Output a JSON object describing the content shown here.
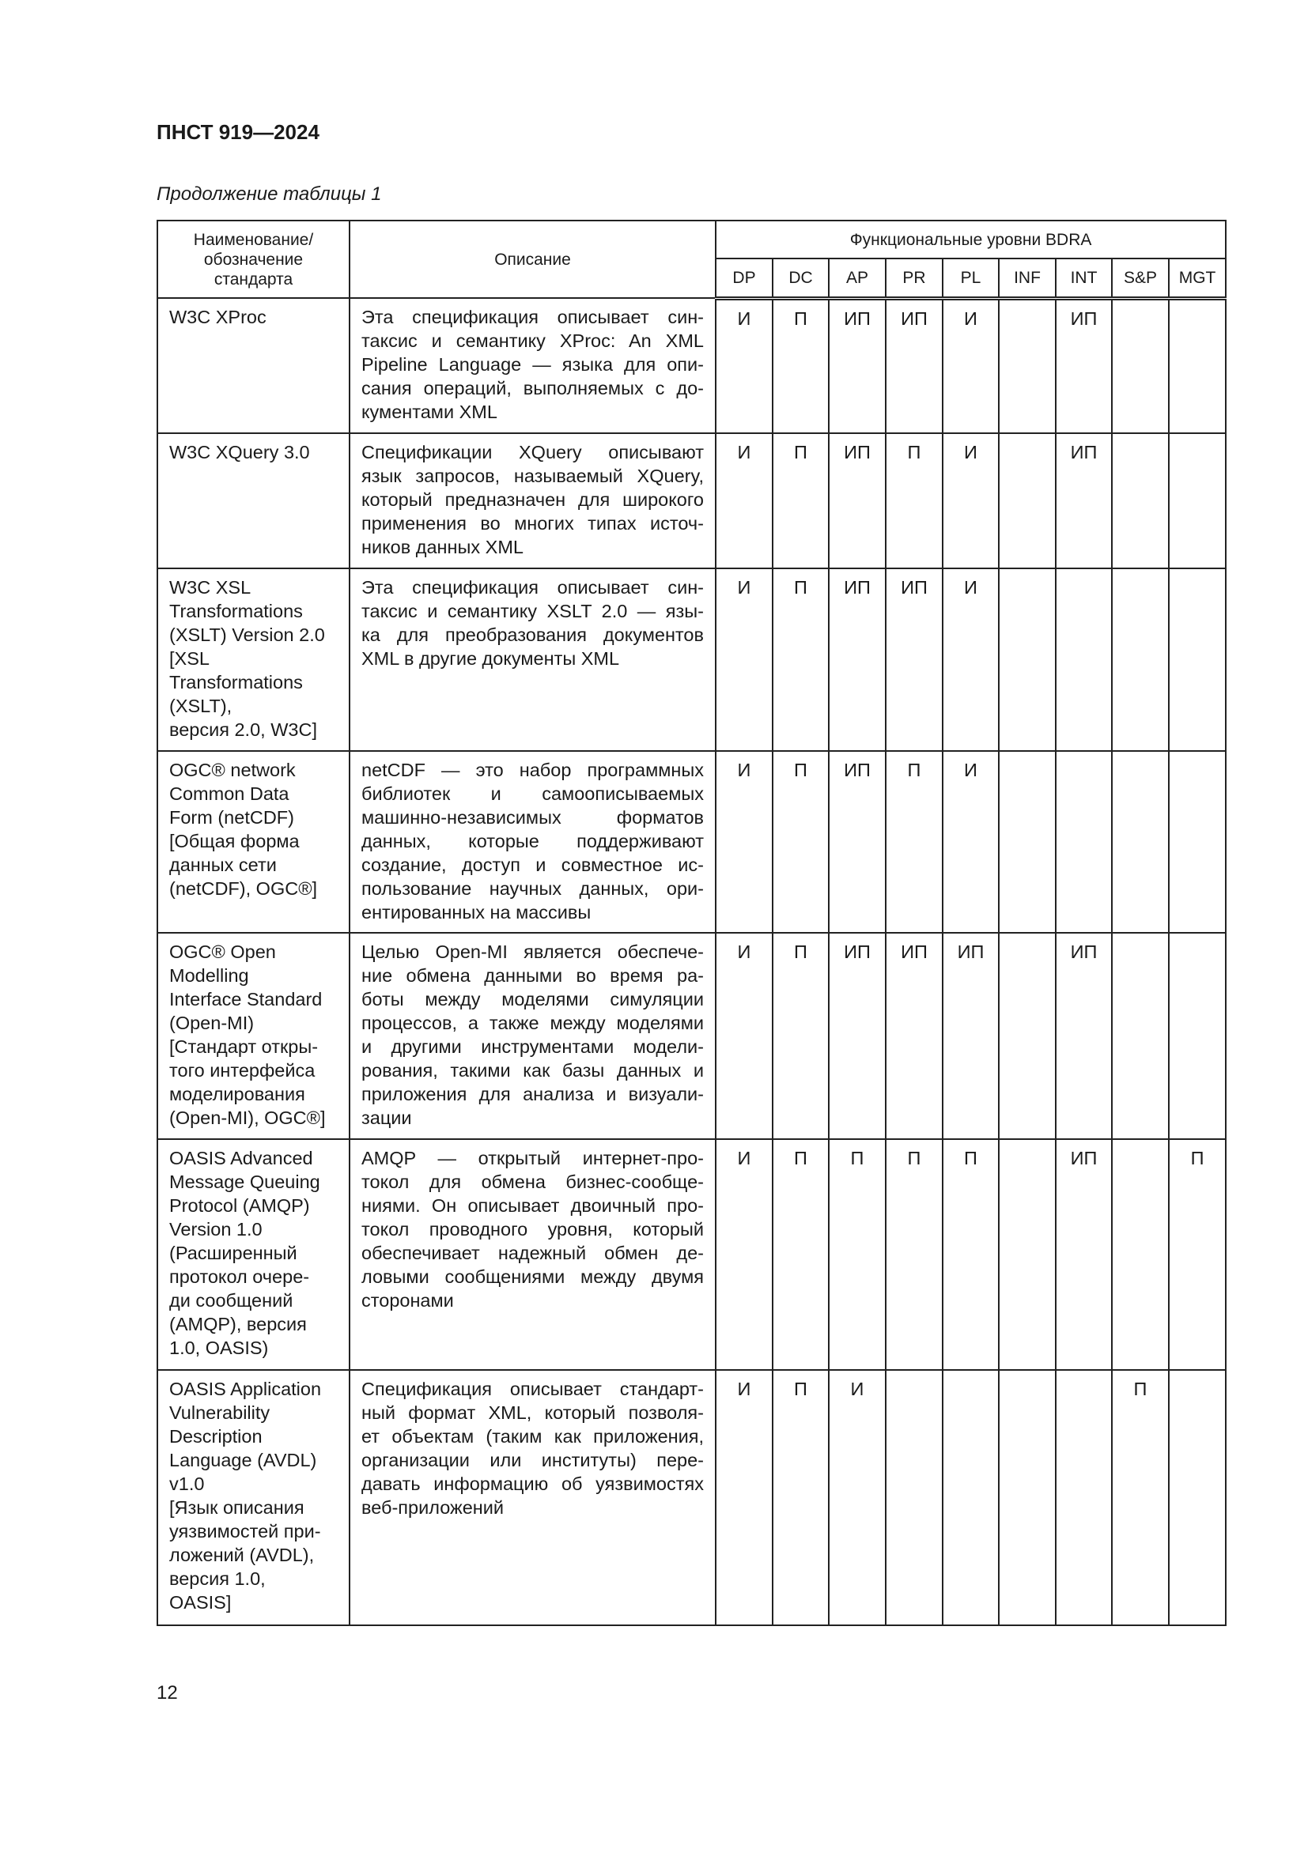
{
  "header": {
    "doc_id": "ПНСТ 919—2024",
    "caption": "Продолжение таблицы 1"
  },
  "table": {
    "col_name": "Наименование/ обозначение стандарта",
    "col_desc": "Описание",
    "col_levels": "Функциональные уровни BDRA",
    "levels": [
      "DP",
      "DC",
      "AP",
      "PR",
      "PL",
      "INF",
      "INT",
      "S&P",
      "MGT"
    ],
    "rows": [
      {
        "name": [
          "W3C XProc"
        ],
        "desc": [
          "Эта спецификация описывает син-",
          "таксис и семантику XProc: An XML",
          "Pipeline Language — языка для опи-",
          "сания операций, выполняемых с до-",
          "кументами XML"
        ],
        "values": [
          "И",
          "П",
          "ИП",
          "ИП",
          "И",
          "",
          "ИП",
          "",
          ""
        ]
      },
      {
        "name": [
          "W3C XQuery 3.0"
        ],
        "desc": [
          "Спецификации XQuery описывают",
          "язык запросов, называемый XQuery,",
          "который предназначен для широкого",
          "применения во многих типах источ-",
          "ников данных XML"
        ],
        "values": [
          "И",
          "П",
          "ИП",
          "П",
          "И",
          "",
          "ИП",
          "",
          ""
        ]
      },
      {
        "name": [
          "W3C XSL",
          "Transformations",
          "(XSLT) Version 2.0",
          "[XSL",
          "Transformations",
          "(XSLT),",
          "версия 2.0, W3C]"
        ],
        "desc": [
          "Эта спецификация описывает син-",
          "таксис и семантику XSLT 2.0 — язы-",
          "ка для преобразования документов",
          "XML в другие документы XML"
        ],
        "values": [
          "И",
          "П",
          "ИП",
          "ИП",
          "И",
          "",
          "",
          "",
          ""
        ]
      },
      {
        "name": [
          "OGC® network",
          "Common Data",
          "Form (netCDF)",
          "[Общая форма",
          "данных сети",
          "(netCDF), OGC®]"
        ],
        "desc": [
          "netCDF — это набор программных",
          "библиотек и самоописываемых",
          "машинно-независимых форматов",
          "данных, которые поддерживают",
          "создание, доступ и совместное ис-",
          "пользование научных данных, ори-",
          "ентированных на массивы"
        ],
        "values": [
          "И",
          "П",
          "ИП",
          "П",
          "И",
          "",
          "",
          "",
          ""
        ]
      },
      {
        "name": [
          "OGC® Open",
          "Modelling",
          "Interface Standard",
          "(Open-MI)",
          "[Стандарт откры-",
          "того интерфейса",
          "моделирования",
          "(Open-MI), OGC®]"
        ],
        "desc": [
          "Целью Open-MI является обеспече-",
          "ние обмена данными во время ра-",
          "боты между моделями симуляции",
          "процессов, а также между моделями",
          "и другими инструментами модели-",
          "рования, такими как базы данных и",
          "приложения для анализа и визуали-",
          "зации"
        ],
        "values": [
          "И",
          "П",
          "ИП",
          "ИП",
          "ИП",
          "",
          "ИП",
          "",
          ""
        ]
      },
      {
        "name": [
          "OASIS Advanced",
          "Message Queuing",
          "Protocol (AMQP)",
          "Version 1.0",
          "(Расширенный",
          "протокол очере-",
          "ди сообщений",
          "(AMQP), версия",
          "1.0, OASIS)"
        ],
        "desc": [
          "AMQP — открытый интернет-про-",
          "токол для обмена бизнес-сообще-",
          "ниями. Он описывает двоичный про-",
          "токол проводного уровня, который",
          "обеспечивает надежный обмен де-",
          "ловыми сообщениями между двумя",
          "сторонами"
        ],
        "values": [
          "И",
          "П",
          "П",
          "П",
          "П",
          "",
          "ИП",
          "",
          "П"
        ]
      },
      {
        "name": [
          "OASIS Application",
          "Vulnerability",
          "Description",
          "Language (AVDL)",
          "v1.0",
          "[Язык описания",
          "уязвимостей при-",
          "ложений (AVDL),",
          "версия 1.0,",
          "OASIS]"
        ],
        "desc": [
          "Спецификация описывает стандарт-",
          "ный формат XML, который позволя-",
          "ет объектам (таким как приложения,",
          "организации или институты) пере-",
          "давать информацию об уязвимостях",
          "веб-приложений"
        ],
        "values": [
          "И",
          "П",
          "И",
          "",
          "",
          "",
          "",
          "П",
          ""
        ]
      }
    ]
  },
  "footer": {
    "page_number": "12"
  }
}
